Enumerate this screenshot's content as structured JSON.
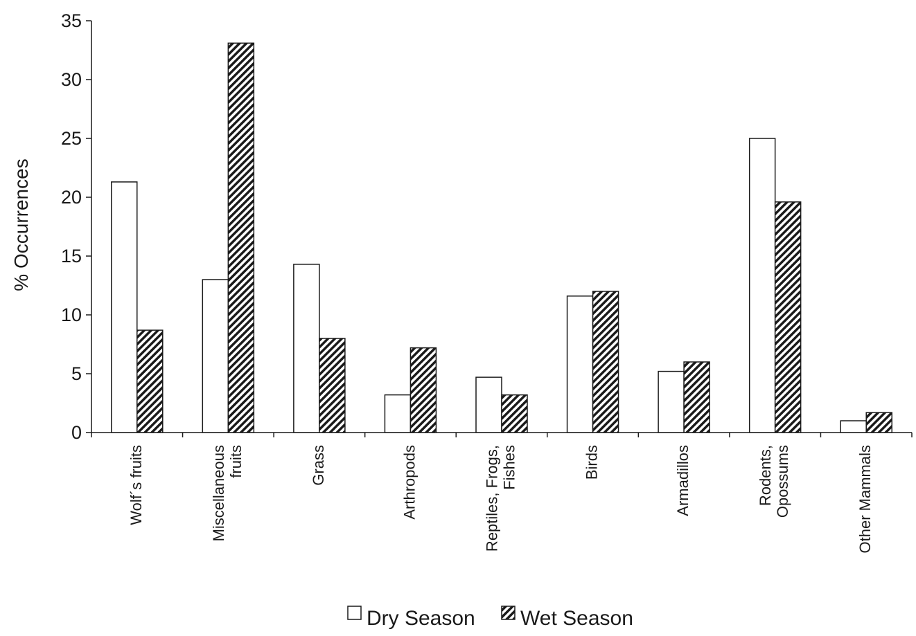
{
  "chart_data": {
    "type": "bar",
    "title": "",
    "xlabel": "",
    "ylabel": "% Occurrences",
    "ylim": [
      0,
      35
    ],
    "yticks": [
      0,
      5,
      10,
      15,
      20,
      25,
      30,
      35
    ],
    "grid": false,
    "legend_position": "bottom",
    "categories": [
      [
        "Wolf´s fruits"
      ],
      [
        "Miscellaneous",
        "fruits"
      ],
      [
        "Grass"
      ],
      [
        "Arthropods"
      ],
      [
        "Reptiles, Frogs,",
        "Fishes"
      ],
      [
        "Birds"
      ],
      [
        "Armadillos"
      ],
      [
        "Rodents,",
        "Opossums"
      ],
      [
        "Other Mammals"
      ]
    ],
    "series": [
      {
        "name": "Dry Season",
        "fill": "#ffffff",
        "values": [
          21.3,
          13.0,
          14.3,
          3.2,
          4.7,
          11.6,
          5.2,
          25.0,
          1.0
        ]
      },
      {
        "name": "Wet Season",
        "fill": "hatched",
        "values": [
          8.7,
          33.1,
          8.0,
          7.2,
          3.2,
          12.0,
          6.0,
          19.6,
          1.7
        ]
      }
    ]
  }
}
